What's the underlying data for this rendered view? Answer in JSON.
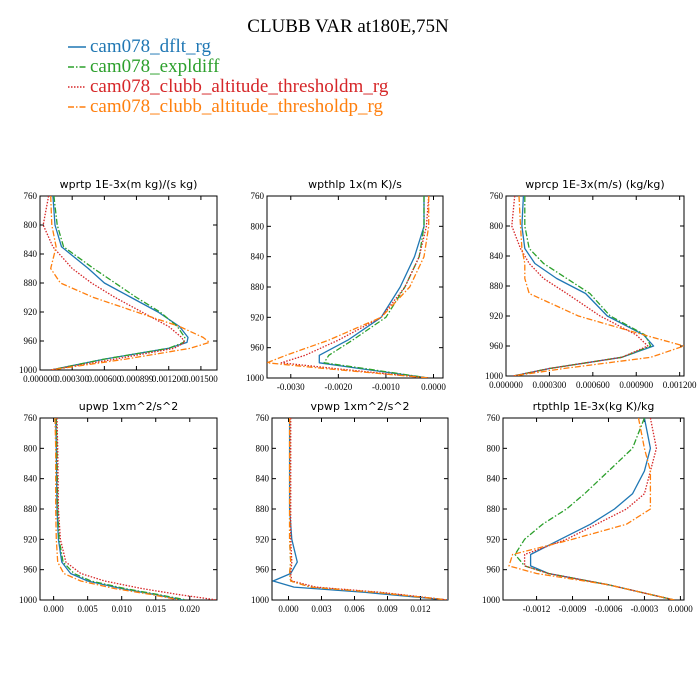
{
  "figure": {
    "title": "CLUBB VAR at180E,75N"
  },
  "legend": [
    {
      "name": "cam078_dflt_rg",
      "color": "#1f77b4",
      "dash": "solid"
    },
    {
      "name": "cam078_expldiff",
      "color": "#2ca02c",
      "dash": "dashdot"
    },
    {
      "name": "cam078_clubb_altitude_thresholdm_rg",
      "color": "#d62728",
      "dash": "dot"
    },
    {
      "name": "cam078_clubb_altitude_thresholdp_rg",
      "color": "#ff7f0e",
      "dash": "dashdot"
    }
  ],
  "chart_data": [
    {
      "type": "line",
      "title": "wprtp  1E-3x(m kg)/(s kg)",
      "xlim": [
        0,
        0.00165
      ],
      "ylim": [
        760,
        1000
      ],
      "y_reversed": true,
      "xticks": [
        "0.000000",
        "0.000300",
        "0.000600",
        "0.000899",
        "0.001200",
        "0.001500"
      ],
      "xtick_values": [
        0,
        0.0003,
        0.0006,
        0.000899,
        0.0012,
        0.0015
      ],
      "yticks": [
        "760",
        "800",
        "840",
        "880",
        "920",
        "960",
        "1000"
      ],
      "y": [
        760,
        800,
        830,
        860,
        880,
        900,
        920,
        940,
        955,
        962,
        970,
        985,
        1000
      ],
      "series": [
        {
          "name": "cam078_dflt_rg",
          "x": [
            0.00012,
            0.00014,
            0.0002,
            0.00045,
            0.0006,
            0.00085,
            0.0011,
            0.0013,
            0.00138,
            0.00137,
            0.0012,
            0.0006,
            0.0001
          ]
        },
        {
          "name": "cam078_expldiff",
          "x": [
            0.00013,
            0.00016,
            0.00022,
            0.0005,
            0.0007,
            0.0009,
            0.00112,
            0.00128,
            0.00135,
            0.00134,
            0.0012,
            0.0006,
            0.0001
          ]
        },
        {
          "name": "cam078_clubb_altitude_thresholdm_rg",
          "x": [
            8e-05,
            3e-05,
            0.00012,
            0.0003,
            0.00048,
            0.0007,
            0.00095,
            0.0012,
            0.00132,
            0.00135,
            0.00125,
            0.0007,
            0.0001
          ]
        },
        {
          "name": "cam078_clubb_altitude_thresholdp_rg",
          "x": [
            0.0001,
            0.00011,
            0.00015,
            0.0001,
            0.00019,
            0.0005,
            0.0009,
            0.0013,
            0.00152,
            0.00158,
            0.0014,
            0.0008,
            0.0001
          ]
        }
      ]
    },
    {
      "type": "line",
      "title": "wpthlp  1x(m K)/s",
      "xlim": [
        -0.0035,
        0.0002
      ],
      "ylim": [
        760,
        1000
      ],
      "y_reversed": true,
      "xticks": [
        "-0.0030",
        "-0.0020",
        "-0.0010",
        "0.0000"
      ],
      "xtick_values": [
        -0.003,
        -0.002,
        -0.001,
        0
      ],
      "yticks": [
        "760",
        "800",
        "840",
        "880",
        "920",
        "960",
        "1000"
      ],
      "y": [
        760,
        800,
        840,
        880,
        920,
        950,
        970,
        980,
        988,
        1000
      ],
      "series": [
        {
          "name": "cam078_dflt_rg",
          "x": [
            -0.0002,
            -0.0002,
            -0.0004,
            -0.0007,
            -0.0011,
            -0.0018,
            -0.0024,
            -0.0024,
            -0.0015,
            -0.0001
          ]
        },
        {
          "name": "cam078_expldiff",
          "x": [
            -0.0002,
            -0.0002,
            -0.0003,
            -0.0006,
            -0.001,
            -0.0017,
            -0.0022,
            -0.0023,
            -0.0014,
            -0.0001
          ]
        },
        {
          "name": "cam078_clubb_altitude_thresholdm_rg",
          "x": [
            -0.0001,
            -0.00015,
            -0.0003,
            -0.0006,
            -0.0011,
            -0.002,
            -0.0027,
            -0.0032,
            -0.002,
            -0.0001
          ]
        },
        {
          "name": "cam078_clubb_altitude_thresholdp_rg",
          "x": [
            -0.0001,
            -0.0001,
            -0.0002,
            -0.0005,
            -0.0011,
            -0.0022,
            -0.0031,
            -0.0035,
            -0.0022,
            -0.0001
          ]
        }
      ]
    },
    {
      "type": "line",
      "title": "wprcp  1E-3x(m/s) (kg/kg)",
      "xlim": [
        0,
        0.00123
      ],
      "ylim": [
        760,
        1000
      ],
      "y_reversed": true,
      "xticks": [
        "0.000000",
        "0.000300",
        "0.000600",
        "0.000900",
        "0.001200"
      ],
      "xtick_values": [
        0,
        0.0003,
        0.0006,
        0.0009,
        0.0012
      ],
      "yticks": [
        "760",
        "800",
        "840",
        "880",
        "920",
        "960",
        "1000"
      ],
      "y": [
        760,
        800,
        830,
        850,
        870,
        890,
        920,
        945,
        960,
        975,
        990,
        1000
      ],
      "series": [
        {
          "name": "cam078_dflt_rg",
          "x": [
            0.00012,
            0.00011,
            0.00013,
            0.0002,
            0.00035,
            0.00055,
            0.0007,
            0.00095,
            0.00102,
            0.0008,
            0.0003,
            5e-05
          ]
        },
        {
          "name": "cam078_expldiff",
          "x": [
            0.00013,
            0.00013,
            0.00016,
            0.00026,
            0.00042,
            0.00058,
            0.00072,
            0.00096,
            0.001,
            0.0008,
            0.0003,
            5e-05
          ]
        },
        {
          "name": "cam078_clubb_altitude_thresholdm_rg",
          "x": [
            6e-05,
            4e-05,
            0.0001,
            0.00016,
            0.00026,
            0.00042,
            0.00065,
            0.0009,
            0.00098,
            0.0008,
            0.0003,
            5e-05
          ]
        },
        {
          "name": "cam078_clubb_altitude_thresholdp_rg",
          "x": [
            9e-05,
            0.0001,
            0.00011,
            0.00013,
            0.00013,
            0.00016,
            0.0005,
            0.00095,
            0.00123,
            0.001,
            0.0004,
            5e-05
          ]
        }
      ]
    },
    {
      "type": "line",
      "title": "upwp  1xm^2/s^2",
      "xlim": [
        -0.002,
        0.024
      ],
      "ylim": [
        760,
        1000
      ],
      "y_reversed": true,
      "xticks": [
        "0.000",
        "0.005",
        "0.010",
        "0.015",
        "0.020"
      ],
      "xtick_values": [
        0,
        0.005,
        0.01,
        0.015,
        0.02
      ],
      "yticks": [
        "760",
        "800",
        "840",
        "880",
        "920",
        "960",
        "1000"
      ],
      "y": [
        760,
        800,
        880,
        920,
        950,
        965,
        975,
        985,
        993,
        1000
      ],
      "series": [
        {
          "name": "cam078_dflt_rg",
          "x": [
            0.0003,
            0.0004,
            0.0005,
            0.0007,
            0.0012,
            0.0025,
            0.005,
            0.01,
            0.015,
            0.019
          ]
        },
        {
          "name": "cam078_expldiff",
          "x": [
            0.0004,
            0.0005,
            0.0006,
            0.0008,
            0.0014,
            0.003,
            0.0055,
            0.0105,
            0.0155,
            0.0195
          ]
        },
        {
          "name": "cam078_clubb_altitude_thresholdm_rg",
          "x": [
            0.0005,
            0.0006,
            0.0007,
            0.001,
            0.0018,
            0.004,
            0.0075,
            0.013,
            0.0185,
            0.024
          ]
        },
        {
          "name": "cam078_clubb_altitude_thresholdp_rg",
          "x": [
            0.0002,
            0.0003,
            0.0003,
            0.0004,
            0.0006,
            0.0015,
            0.004,
            0.009,
            0.0145,
            0.0185
          ]
        }
      ]
    },
    {
      "type": "line",
      "title": "vpwp  1xm^2/s^2",
      "xlim": [
        -0.0015,
        0.0145
      ],
      "ylim": [
        760,
        1000
      ],
      "y_reversed": true,
      "xticks": [
        "0.000",
        "0.003",
        "0.006",
        "0.009",
        "0.012"
      ],
      "xtick_values": [
        0,
        0.003,
        0.006,
        0.009,
        0.012
      ],
      "yticks": [
        "760",
        "800",
        "840",
        "880",
        "920",
        "960",
        "1000"
      ],
      "y": [
        760,
        800,
        880,
        920,
        950,
        965,
        975,
        983,
        990,
        1000
      ],
      "series": [
        {
          "name": "cam078_dflt_rg",
          "x": [
            0.0001,
            0.0001,
            0.0001,
            0.0003,
            0.0008,
            0.0002,
            -0.0014,
            0.0005,
            0.007,
            0.0145
          ]
        },
        {
          "name": "cam078_expldiff",
          "x": [
            0.0001,
            0.0001,
            0.0001,
            0.0001,
            0.0002,
            0.0001,
            0.0002,
            0.002,
            0.008,
            0.0145
          ]
        },
        {
          "name": "cam078_clubb_altitude_thresholdm_rg",
          "x": [
            0.0002,
            0.0002,
            0.0002,
            0.0002,
            0.0003,
            0.0002,
            0.0003,
            0.0025,
            0.0085,
            0.0145
          ]
        },
        {
          "name": "cam078_clubb_altitude_thresholdp_rg",
          "x": [
            0.0001,
            0.0001,
            0.0001,
            0.0001,
            0.0002,
            0.0001,
            0.0002,
            0.002,
            0.008,
            0.0145
          ]
        }
      ]
    },
    {
      "type": "line",
      "title": "rtpthlp  1E-3x(kg K)/kg",
      "xlim": [
        -0.00148,
        3e-05
      ],
      "ylim": [
        760,
        1000
      ],
      "y_reversed": true,
      "xticks": [
        "-0.0012",
        "-0.0009",
        "-0.0006",
        "-0.0003",
        "0.0000"
      ],
      "xtick_values": [
        -0.0012,
        -0.0009,
        -0.0006,
        -0.0003,
        0
      ],
      "yticks": [
        "760",
        "800",
        "840",
        "880",
        "920",
        "960",
        "1000"
      ],
      "y": [
        760,
        800,
        830,
        860,
        880,
        900,
        920,
        940,
        955,
        965,
        980,
        1000
      ],
      "series": [
        {
          "name": "cam078_dflt_rg",
          "x": [
            -0.0003,
            -0.00025,
            -0.0003,
            -0.0004,
            -0.00055,
            -0.00075,
            -0.001,
            -0.00125,
            -0.00125,
            -0.0011,
            -0.0006,
            -5e-05
          ]
        },
        {
          "name": "cam078_expldiff",
          "x": [
            -0.0003,
            -0.0004,
            -0.0006,
            -0.0008,
            -0.00095,
            -0.00115,
            -0.0013,
            -0.00138,
            -0.0013,
            -0.0011,
            -0.0006,
            -5e-05
          ]
        },
        {
          "name": "cam078_clubb_altitude_thresholdm_rg",
          "x": [
            -0.00025,
            -0.0002,
            -0.00025,
            -0.0003,
            -0.00045,
            -0.0007,
            -0.00095,
            -0.0013,
            -0.0013,
            -0.0011,
            -0.0006,
            -5e-05
          ]
        },
        {
          "name": "cam078_clubb_altitude_thresholdp_rg",
          "x": [
            -0.00035,
            -0.0003,
            -0.00025,
            -0.00025,
            -0.00025,
            -0.00045,
            -0.0009,
            -0.0014,
            -0.00143,
            -0.0012,
            -0.0006,
            -5e-05
          ]
        }
      ]
    }
  ]
}
